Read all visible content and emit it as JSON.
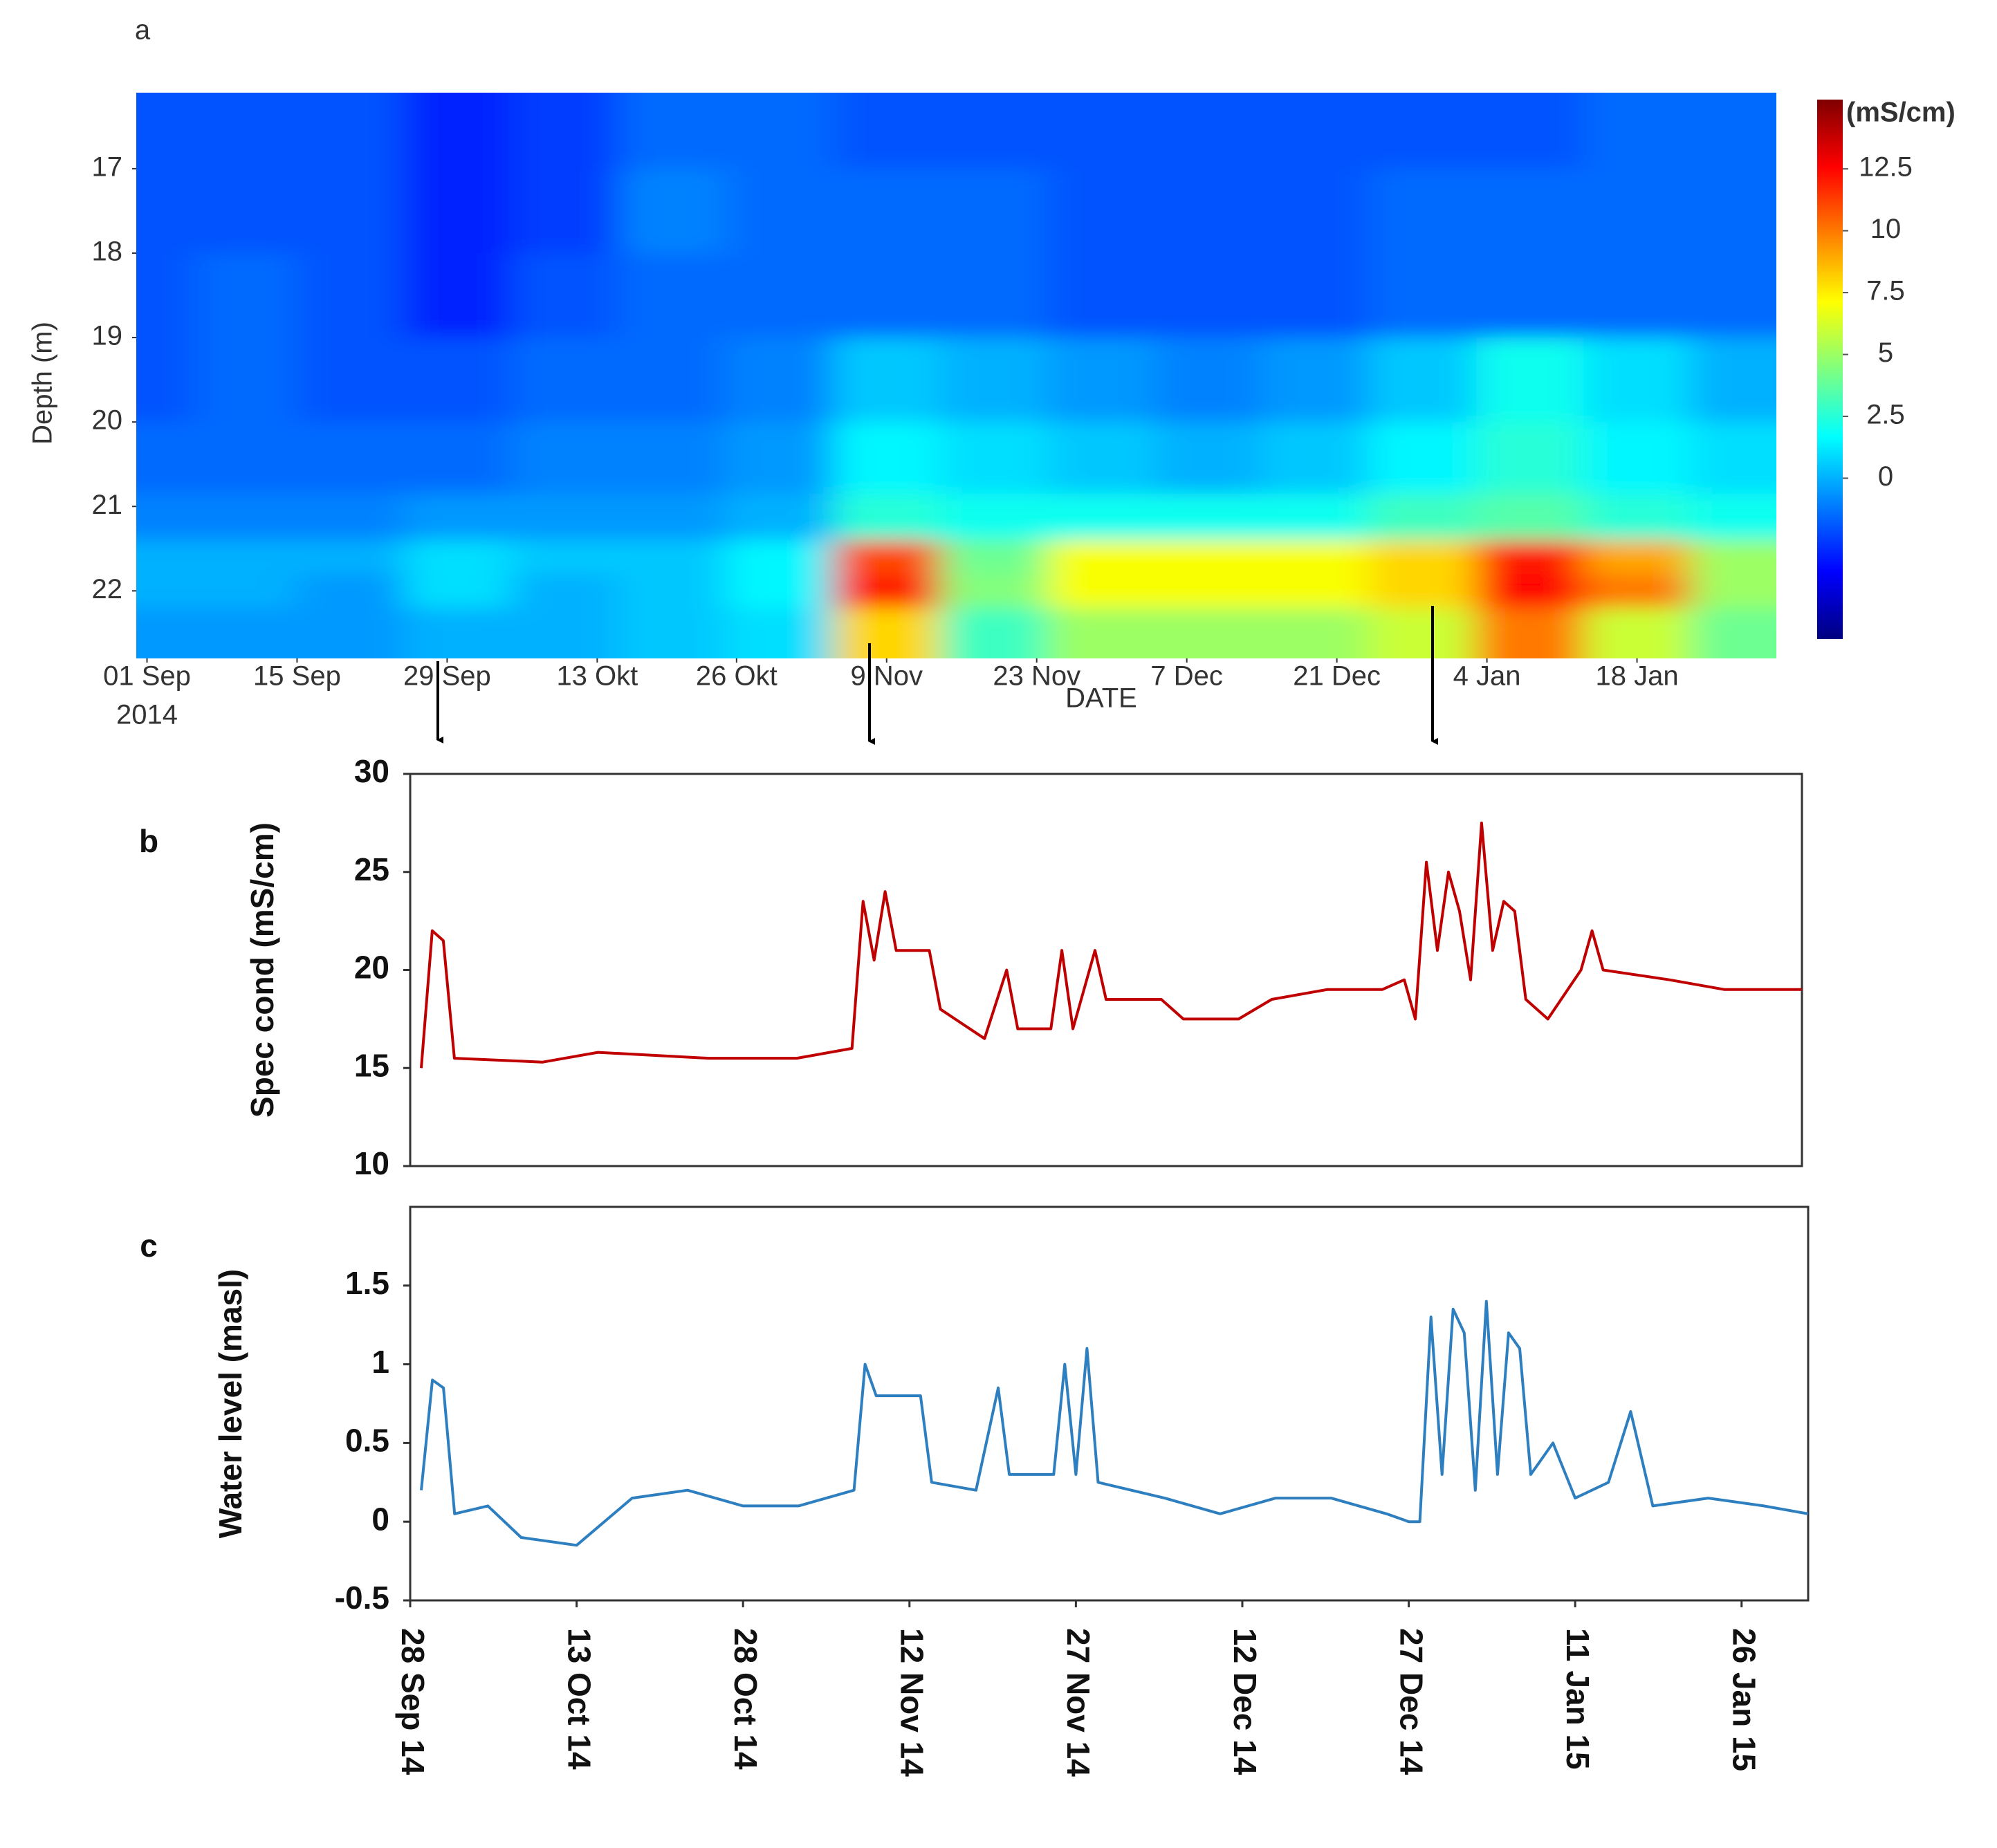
{
  "chart_data": [
    {
      "type": "heatmap",
      "label": "a",
      "xlabel": "DATE",
      "ylabel": "Depth (m)",
      "colorbar_label": "(mS/cm)",
      "x_year_label": "2014",
      "x": [
        "2014-09-01",
        "2014-09-10",
        "2014-09-20",
        "2014-09-30",
        "2014-10-10",
        "2014-10-20",
        "2014-10-30",
        "2014-11-09",
        "2014-11-19",
        "2014-11-29",
        "2014-12-09",
        "2014-12-19",
        "2014-12-29",
        "2015-01-08",
        "2015-01-18",
        "2015-01-28"
      ],
      "y": [
        16.5,
        17.5,
        18.5,
        19.5,
        20.5,
        21.2,
        21.6,
        22.0,
        22.4
      ],
      "z": [
        [
          -2,
          -2,
          -2,
          -3,
          -2.5,
          -1.5,
          -1.5,
          -2,
          -2,
          -2,
          -2,
          -2,
          -2,
          -2,
          -1.5,
          -1.5
        ],
        [
          -2,
          -2,
          -2,
          -3,
          -2.5,
          -1,
          -1.5,
          -1.5,
          -1.5,
          -2,
          -2,
          -2,
          -1.5,
          -1.5,
          -1.5,
          -1.5
        ],
        [
          -2,
          -1.5,
          -2,
          -3,
          -2,
          -1.5,
          -1.5,
          -1.5,
          -1.5,
          -2,
          -2,
          -2,
          -1.5,
          -1.5,
          -1.5,
          -1.5
        ],
        [
          -2,
          -1.5,
          -2,
          -2,
          -1.5,
          -1.5,
          -1,
          0.5,
          0,
          -0.5,
          -1,
          -0.5,
          0.5,
          2,
          1,
          0
        ],
        [
          -1.5,
          -1.5,
          -1.5,
          -1.5,
          -1,
          -1,
          -0.5,
          1.5,
          1,
          0.5,
          0,
          0.5,
          1.5,
          2.5,
          1.5,
          1
        ],
        [
          -1,
          -1,
          -1,
          -0.5,
          -0.5,
          -0.5,
          0,
          2.5,
          2,
          2,
          2,
          2,
          3,
          3.5,
          2.5,
          2
        ],
        [
          0,
          0,
          0,
          1,
          0.5,
          0.5,
          1.5,
          11,
          4,
          7,
          7,
          7,
          8,
          12,
          9,
          5
        ],
        [
          0,
          0,
          -0.5,
          1,
          0,
          0.5,
          1.5,
          12,
          4.5,
          7,
          7,
          7,
          8,
          12.5,
          10,
          5
        ],
        [
          -0.5,
          -0.5,
          -0.5,
          0,
          0,
          0.5,
          1,
          8,
          3,
          5,
          5,
          5,
          6,
          10,
          6,
          4
        ]
      ],
      "xlim": [
        "2014-08-31",
        "2015-01-31"
      ],
      "xticks": [
        {
          "value": "2014-09-01",
          "label": "01 Sep"
        },
        {
          "value": "2014-09-15",
          "label": "15 Sep"
        },
        {
          "value": "2014-09-29",
          "label": "29 Sep"
        },
        {
          "value": "2014-10-13",
          "label": "13 Okt"
        },
        {
          "value": "2014-10-26",
          "label": "26 Okt"
        },
        {
          "value": "2014-11-09",
          "label": "9 Nov"
        },
        {
          "value": "2014-11-23",
          "label": "23 Nov"
        },
        {
          "value": "2014-12-07",
          "label": "7 Dec"
        },
        {
          "value": "2014-12-21",
          "label": "21 Dec"
        },
        {
          "value": "2015-01-04",
          "label": "4 Jan"
        },
        {
          "value": "2015-01-18",
          "label": "18 Jan"
        }
      ],
      "ylim": [
        16.1,
        22.8
      ],
      "y_inverted": true,
      "yticks": [
        17,
        18,
        19,
        20,
        21,
        22
      ],
      "colormap": "jet",
      "clim": [
        -6.5,
        15.3
      ],
      "cticks": [
        0,
        2.5,
        5,
        7.5,
        10,
        12.5
      ]
    },
    {
      "type": "line",
      "label": "b",
      "ylabel": "Spec cond (mS/cm)",
      "color": "#c00000",
      "x": [
        "2014-09-29",
        "2014-09-30",
        "2014-10-01",
        "2014-10-02",
        "2014-10-10",
        "2014-10-15",
        "2014-10-25",
        "2014-11-02",
        "2014-11-07",
        "2014-11-08",
        "2014-11-09",
        "2014-11-10",
        "2014-11-11",
        "2014-11-14",
        "2014-11-15",
        "2014-11-19",
        "2014-11-21",
        "2014-11-22",
        "2014-11-25",
        "2014-11-26",
        "2014-11-27",
        "2014-11-29",
        "2014-11-30",
        "2014-12-05",
        "2014-12-07",
        "2014-12-12",
        "2014-12-15",
        "2014-12-20",
        "2014-12-25",
        "2014-12-27",
        "2014-12-28",
        "2014-12-29",
        "2014-12-30",
        "2014-12-31",
        "2015-01-01",
        "2015-01-02",
        "2015-01-03",
        "2015-01-04",
        "2015-01-05",
        "2015-01-06",
        "2015-01-07",
        "2015-01-09",
        "2015-01-12",
        "2015-01-13",
        "2015-01-14",
        "2015-01-20",
        "2015-01-25",
        "2015-02-01"
      ],
      "values": [
        15,
        22,
        21.5,
        15.5,
        15.3,
        15.8,
        15.5,
        15.5,
        16,
        23.5,
        20.5,
        24,
        21,
        21,
        18,
        16.5,
        20,
        17,
        17,
        21,
        17,
        21,
        18.5,
        18.5,
        17.5,
        17.5,
        18.5,
        19,
        19,
        19.5,
        17.5,
        25.5,
        21,
        25,
        23,
        19.5,
        27.5,
        21,
        23.5,
        23,
        18.5,
        17.5,
        20,
        22,
        20,
        19.5,
        19,
        19
      ],
      "xlim": [
        "2014-09-28",
        "2015-02-01"
      ],
      "ylim": [
        10,
        30
      ],
      "yticks": [
        10,
        15,
        20,
        25,
        30
      ]
    },
    {
      "type": "line",
      "label": "c",
      "ylabel": "Water level (masl)",
      "color": "#2e7fc0",
      "x": [
        "2014-09-29",
        "2014-09-30",
        "2014-10-01",
        "2014-10-02",
        "2014-10-05",
        "2014-10-08",
        "2014-10-13",
        "2014-10-18",
        "2014-10-23",
        "2014-10-28",
        "2014-11-02",
        "2014-11-07",
        "2014-11-08",
        "2014-11-09",
        "2014-11-13",
        "2014-11-14",
        "2014-11-18",
        "2014-11-20",
        "2014-11-21",
        "2014-11-25",
        "2014-11-26",
        "2014-11-27",
        "2014-11-28",
        "2014-11-29",
        "2014-12-05",
        "2014-12-10",
        "2014-12-15",
        "2014-12-20",
        "2014-12-25",
        "2014-12-27",
        "2014-12-28",
        "2014-12-29",
        "2014-12-30",
        "2014-12-31",
        "2015-01-01",
        "2015-01-02",
        "2015-01-03",
        "2015-01-04",
        "2015-01-05",
        "2015-01-06",
        "2015-01-07",
        "2015-01-09",
        "2015-01-11",
        "2015-01-14",
        "2015-01-16",
        "2015-01-18",
        "2015-01-23",
        "2015-01-28",
        "2015-02-01"
      ],
      "values": [
        0.2,
        0.9,
        0.85,
        0.05,
        0.1,
        -0.1,
        -0.15,
        0.15,
        0.2,
        0.1,
        0.1,
        0.2,
        1.0,
        0.8,
        0.8,
        0.25,
        0.2,
        0.85,
        0.3,
        0.3,
        1.0,
        0.3,
        1.1,
        0.25,
        0.15,
        0.05,
        0.15,
        0.15,
        0.05,
        0.0,
        0.0,
        1.3,
        0.3,
        1.35,
        1.2,
        0.2,
        1.4,
        0.3,
        1.2,
        1.1,
        0.3,
        0.5,
        0.15,
        0.25,
        0.7,
        0.1,
        0.15,
        0.1,
        0.05
      ],
      "xlim": [
        "2014-09-28",
        "2015-02-01"
      ],
      "ylim": [
        -0.5,
        2
      ],
      "yticks": [
        -0.5,
        0,
        0.5,
        1,
        1.5
      ],
      "xticks": [
        {
          "value": "2014-09-28",
          "label": "28 Sep 14"
        },
        {
          "value": "2014-10-13",
          "label": "13 Oct 14"
        },
        {
          "value": "2014-10-28",
          "label": "28 Oct 14"
        },
        {
          "value": "2014-11-12",
          "label": "12 Nov 14"
        },
        {
          "value": "2014-11-27",
          "label": "27 Nov 14"
        },
        {
          "value": "2014-12-12",
          "label": "12 Dec 14"
        },
        {
          "value": "2014-12-27",
          "label": "27 Dec 14"
        },
        {
          "value": "2015-01-11",
          "label": "11 Jan 15"
        },
        {
          "value": "2015-01-26",
          "label": "26 Jan 15"
        }
      ]
    }
  ]
}
